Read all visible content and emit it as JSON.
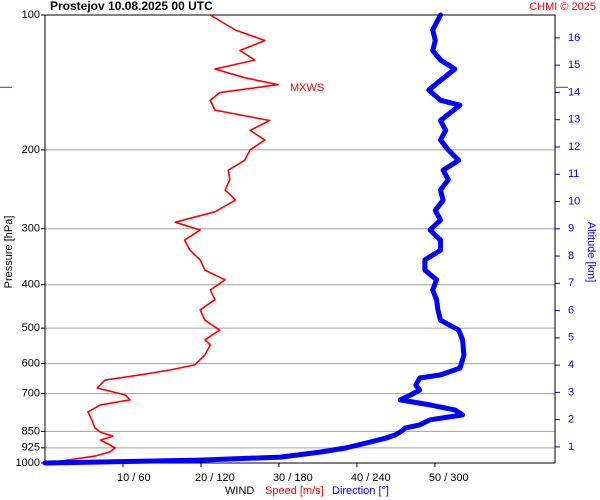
{
  "chart_data": {
    "type": "profile",
    "title": "Prostejov   10.08.2025 00 UTC",
    "credit": "CHMI © 2025",
    "ylabel": "Pressure [hPa]",
    "y2label": "Altitude [km]",
    "xlabel": "WIND",
    "log_y": true,
    "grid": true,
    "ylim": [
      100,
      1000
    ],
    "yticks": [
      100,
      200,
      300,
      400,
      500,
      600,
      700,
      850,
      925,
      1000
    ],
    "y2lim": [
      0.41,
      16.84
    ],
    "y2ticks": [
      1,
      2,
      3,
      4,
      5,
      6,
      7,
      8,
      9,
      10,
      11,
      12,
      13,
      14,
      15,
      16
    ],
    "xlim": [
      0,
      65.4
    ],
    "x2lim": [
      0,
      392
    ],
    "xticks": [
      {
        "value": 10,
        "label": "10 / 60"
      },
      {
        "value": 20,
        "label": "20 / 120"
      },
      {
        "value": 30,
        "label": "30 / 180"
      },
      {
        "value": 40,
        "label": "40 / 240"
      },
      {
        "value": 50,
        "label": "50 / 300"
      }
    ],
    "mxws": {
      "label": "MXWS",
      "pressure": 145
    },
    "series": [
      {
        "name": "Speed [m/s]",
        "color": "#ff0000",
        "axis": "x",
        "pressure": [
          1000,
          965,
          945,
          926,
          907,
          889,
          871,
          853,
          835,
          801,
          769,
          742,
          723,
          705,
          680,
          653,
          636,
          620,
          604,
          574,
          545,
          531,
          505,
          480,
          455,
          432,
          411,
          390,
          371,
          352,
          335,
          318,
          302,
          290,
          275,
          259,
          252,
          246,
          233,
          222,
          211,
          200,
          190,
          181,
          172,
          163,
          155,
          149,
          143,
          138,
          132,
          126,
          120,
          114,
          108,
          100
        ],
        "values": [
          0.3,
          6.4,
          8.3,
          9.0,
          8.1,
          7.1,
          8.7,
          7.1,
          6.4,
          6.0,
          5.5,
          7.1,
          10.9,
          10.3,
          6.7,
          7.7,
          12.2,
          16.0,
          19.2,
          20.5,
          21.2,
          20.5,
          22.4,
          20.5,
          19.9,
          21.8,
          21.2,
          23.1,
          20.5,
          19.9,
          18.6,
          17.9,
          19.9,
          16.7,
          21.8,
          24.4,
          23.8,
          23.1,
          23.7,
          23.5,
          25.6,
          26.3,
          28.2,
          26.3,
          28.8,
          21.8,
          21.2,
          22.4,
          29.9,
          25.6,
          21.8,
          26.9,
          25.0,
          28.2,
          24.4,
          21.2
        ]
      },
      {
        "name": "Direction [°]",
        "color": "#0000ff",
        "axis": "x2",
        "pressure": [
          1000,
          995,
          985,
          970,
          945,
          926,
          898,
          880,
          866,
          853,
          835,
          822,
          801,
          781,
          761,
          742,
          723,
          705,
          687,
          670,
          646,
          636,
          614,
          574,
          531,
          505,
          480,
          455,
          432,
          411,
          390,
          371,
          352,
          335,
          318,
          302,
          287,
          273,
          259,
          246,
          233,
          222,
          211,
          200,
          190,
          181,
          172,
          159,
          155,
          147,
          140,
          132,
          126,
          120,
          114,
          108,
          100
        ],
        "values": [
          0,
          42,
          119,
          181,
          212,
          231,
          250,
          262,
          269,
          273,
          277,
          288,
          296,
          321,
          315,
          296,
          273,
          281,
          288,
          285,
          288,
          304,
          319,
          322,
          321,
          318,
          304,
          302,
          301,
          298,
          301,
          292,
          292,
          304,
          304,
          296,
          304,
          300,
          306,
          304,
          310,
          306,
          318,
          310,
          304,
          308,
          304,
          319,
          304,
          295,
          304,
          315,
          304,
          298,
          300,
          298,
          304
        ]
      }
    ]
  }
}
